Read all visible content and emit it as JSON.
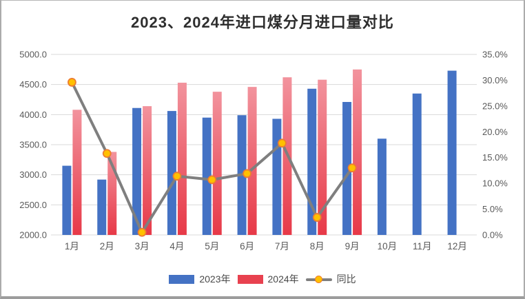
{
  "title": "2023、2024年进口煤分月进口量对比",
  "colors": {
    "bar_2023": "#4472C4",
    "bar_2024_top": "#F2939D",
    "bar_2024_bottom": "#E73948",
    "legend_2024": "#E8414F",
    "line": "#7F7F7F",
    "marker_fill": "#FFC000",
    "marker_stroke": "#ED7D31",
    "grid": "#D9D9D9",
    "axis_text": "#595959",
    "x_axis_text": "#595959"
  },
  "chart_data": {
    "type": "bar",
    "combo": "clustered bars (left axis) + line with markers (right axis)",
    "title": "2023、2024年进口煤分月进口量对比",
    "categories": [
      "1月",
      "2月",
      "3月",
      "4月",
      "5月",
      "6月",
      "7月",
      "8月",
      "9月",
      "10月",
      "11月",
      "12月"
    ],
    "series": [
      {
        "name": "2023年",
        "type": "bar",
        "axis": "left",
        "values": [
          3150,
          2920,
          4110,
          4060,
          3950,
          3990,
          3930,
          4430,
          4210,
          3600,
          4350,
          4730
        ]
      },
      {
        "name": "2024年",
        "type": "bar",
        "axis": "left",
        "values": [
          4080,
          3380,
          4140,
          4530,
          4380,
          4460,
          4620,
          4580,
          4750,
          null,
          null,
          null
        ]
      },
      {
        "name": "同比",
        "type": "line",
        "axis": "right",
        "unit": "%",
        "values": [
          29.6,
          15.8,
          0.5,
          11.4,
          10.7,
          11.9,
          17.8,
          3.4,
          13.0,
          null,
          null,
          null
        ]
      }
    ],
    "left_axis": {
      "min": 2000,
      "max": 5000,
      "step": 500,
      "labels": [
        "5000.0",
        "4500.0",
        "4000.0",
        "3500.0",
        "3000.0",
        "2500.0",
        "2000.0"
      ]
    },
    "right_axis": {
      "min": 0,
      "max": 35,
      "step": 5,
      "labels": [
        "35.0%",
        "30.0%",
        "25.0%",
        "20.0%",
        "15.0%",
        "10.0%",
        "5.0%",
        "0.0%"
      ]
    },
    "grid": true,
    "legend_position": "bottom"
  }
}
